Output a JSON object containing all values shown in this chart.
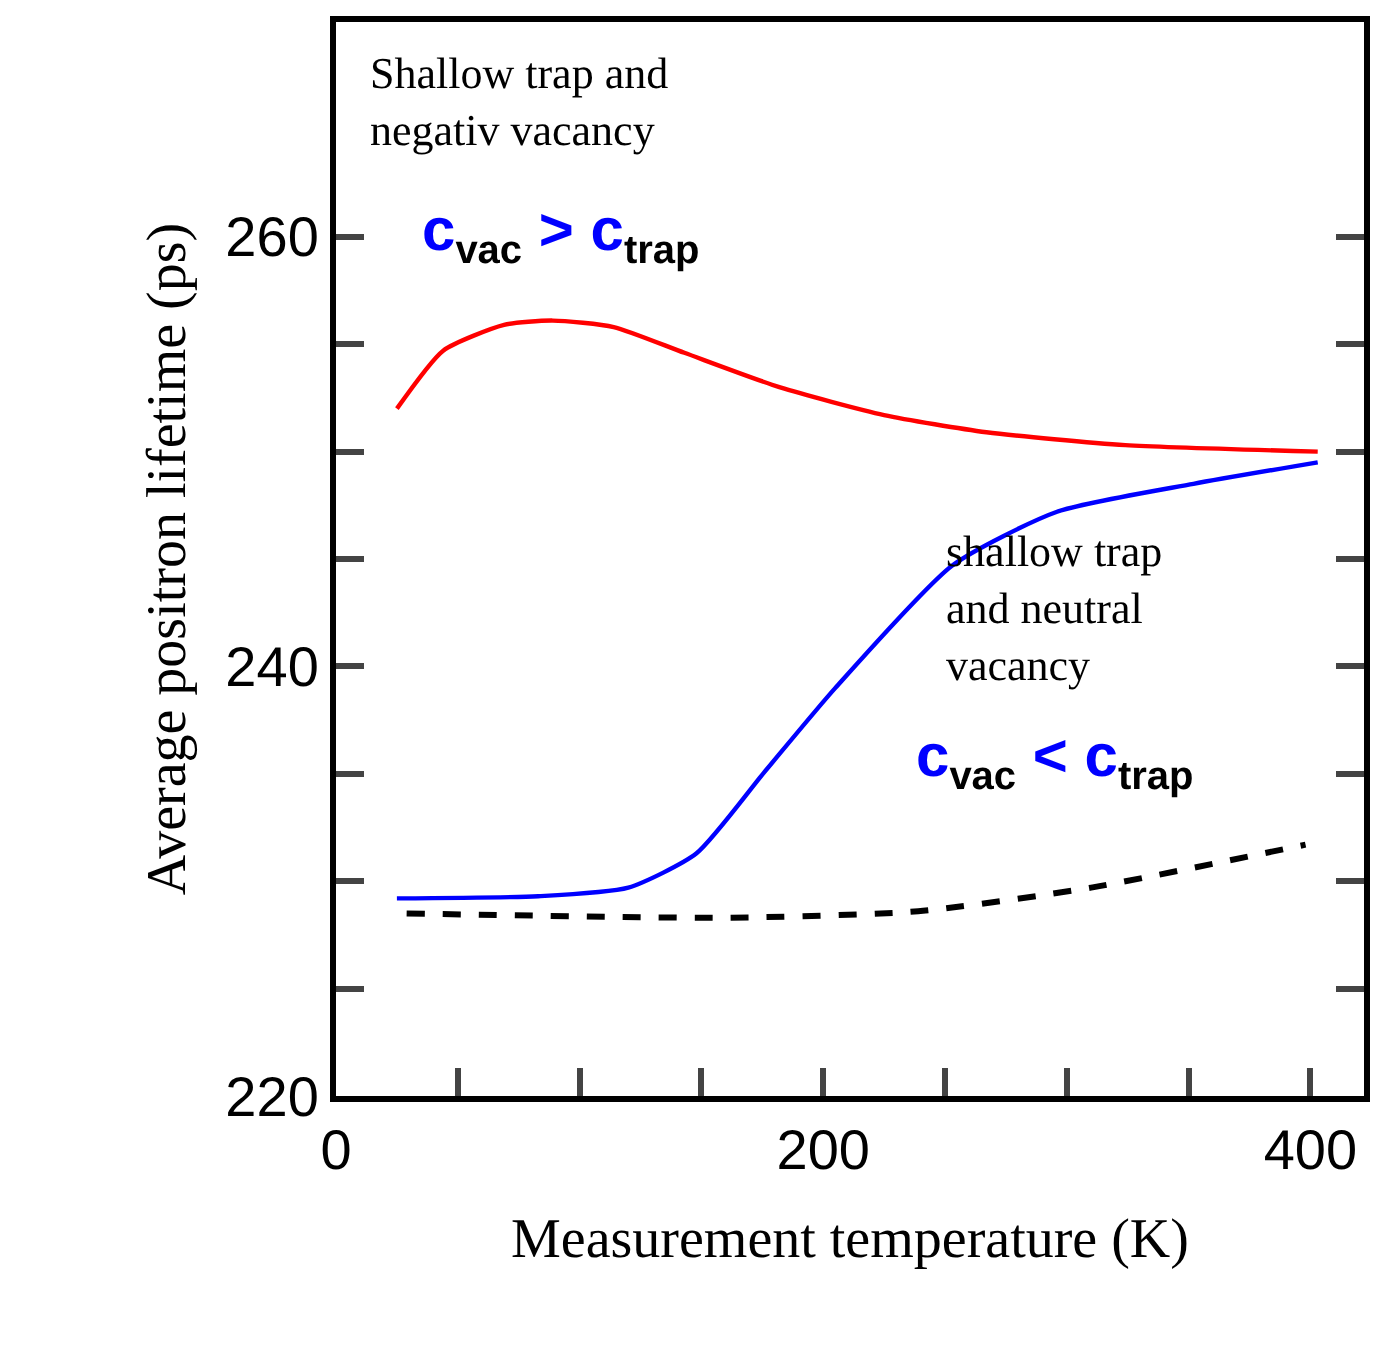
{
  "chart_data": {
    "type": "line",
    "xlabel": "Measurement temperature (K)",
    "ylabel": "Average positron lifetime (ps)",
    "xlim": [
      0,
      422
    ],
    "ylim": [
      220,
      270
    ],
    "xticks": [
      0,
      {
        "value": 50,
        "label": null
      },
      {
        "value": 100,
        "label": null
      },
      {
        "value": 150,
        "label": null
      },
      200,
      {
        "value": 250,
        "label": null
      },
      {
        "value": 300,
        "label": null
      },
      {
        "value": 350,
        "label": null
      },
      400
    ],
    "yticks": [
      220,
      {
        "value": 225,
        "label": null
      },
      {
        "value": 230,
        "label": null
      },
      {
        "value": 235,
        "label": null
      },
      240,
      {
        "value": 245,
        "label": null
      },
      {
        "value": 250,
        "label": null
      },
      {
        "value": 255,
        "label": null
      },
      260
    ],
    "series": [
      {
        "color": "#ff0000",
        "line_style": "solid",
        "x": [
          25,
          44,
          69,
          89,
          114,
          143,
          182,
          225,
          267,
          324,
          403
        ],
        "values": [
          252.0,
          254.7,
          255.9,
          256.1,
          255.8,
          254.6,
          253.0,
          251.7,
          250.9,
          250.3,
          250.0
        ]
      },
      {
        "color": "#0000ff",
        "line_style": "solid",
        "x": [
          25,
          83,
          120,
          148,
          176,
          205,
          253,
          296,
          352,
          403
        ],
        "values": [
          229.2,
          229.3,
          229.7,
          231.3,
          235.1,
          239.0,
          244.7,
          247.2,
          248.5,
          249.5
        ]
      },
      {
        "color": "#000000",
        "line_style": "dashed",
        "x": [
          29,
          162,
          239,
          310,
          398
        ],
        "values": [
          228.5,
          228.3,
          228.6,
          229.7,
          231.7
        ]
      }
    ],
    "annotations": [
      "Shallow trap and\nnegativ vacancy",
      "c$_{vac}$ > c$_{trap}$",
      "shallow trap\nand neutral\nvacancy",
      "c$_{vac}$ < c$_{trap}$"
    ]
  }
}
